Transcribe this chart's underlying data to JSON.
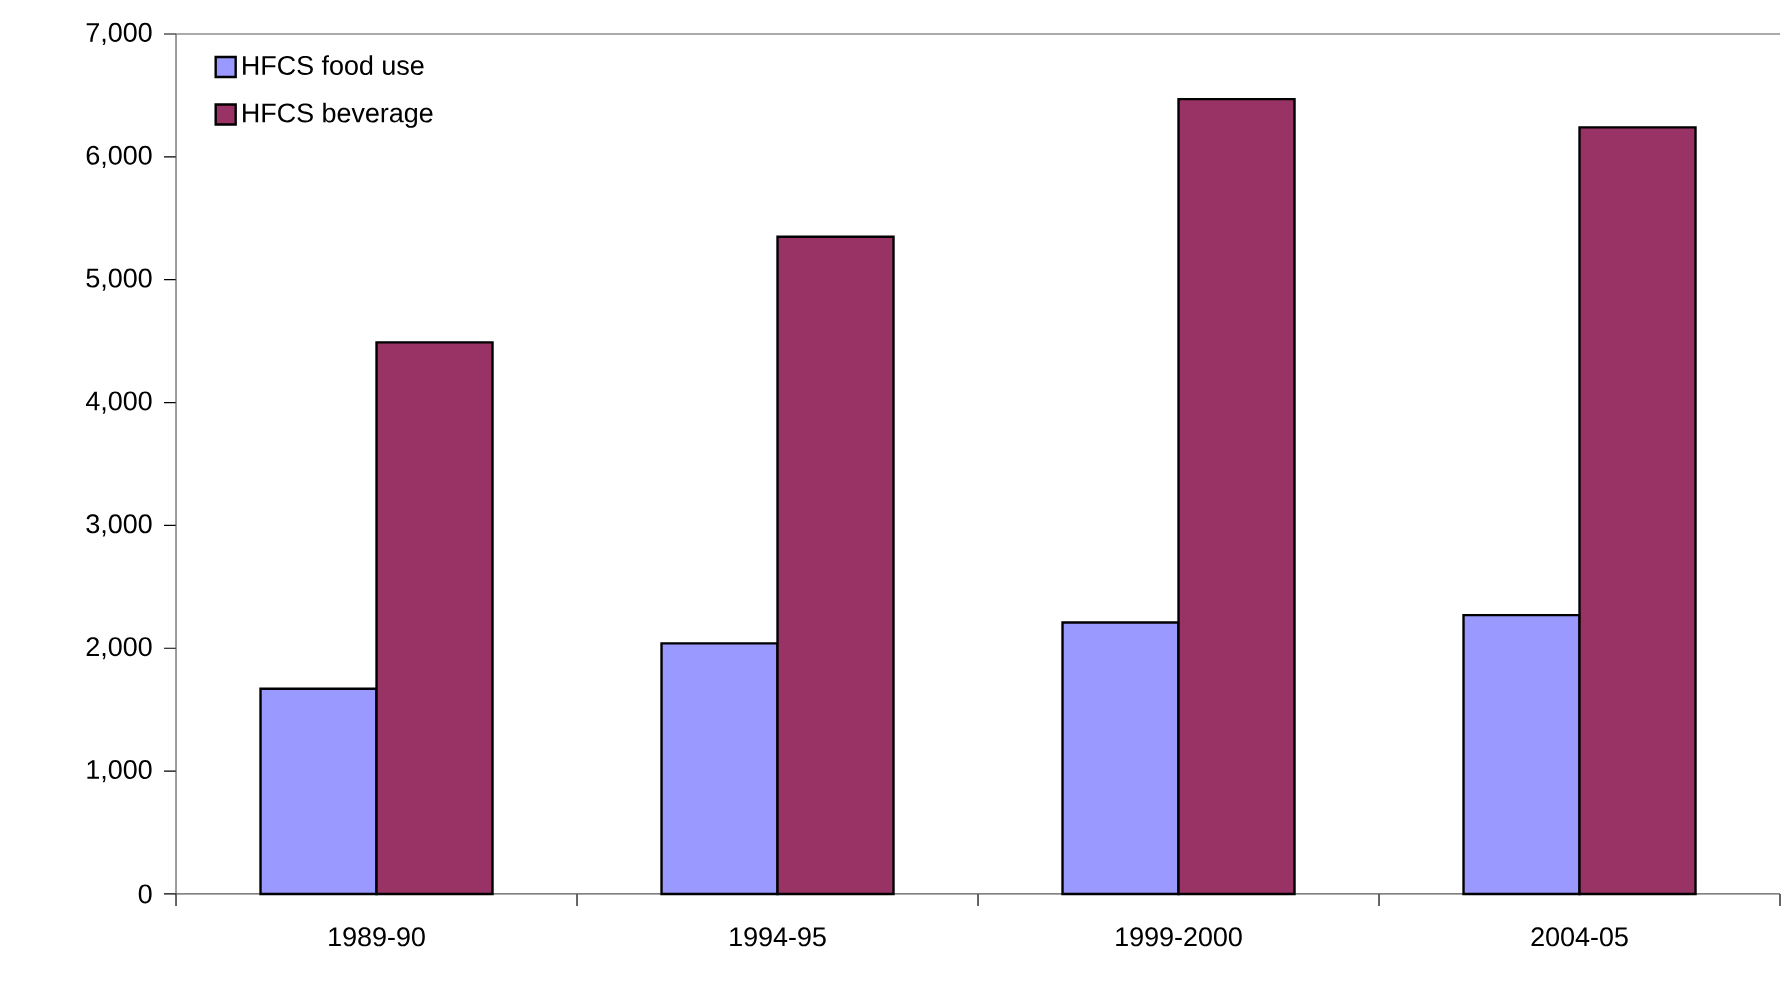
{
  "chart_data": {
    "type": "bar",
    "categories": [
      "1989-90",
      "1994-95",
      "1999-2000",
      "2004-05"
    ],
    "series": [
      {
        "name": "HFCS food use",
        "color": "#9999ff",
        "values": [
          1670,
          2040,
          2210,
          2270
        ]
      },
      {
        "name": "HFCS beverage",
        "color": "#993366",
        "values": [
          4490,
          5350,
          6470,
          6240
        ]
      }
    ],
    "ylim": [
      0,
      7000
    ],
    "yticks": [
      {
        "value": 0,
        "label": "0"
      },
      {
        "value": 1000,
        "label": "1,000"
      },
      {
        "value": 2000,
        "label": "2,000"
      },
      {
        "value": 3000,
        "label": "3,000"
      },
      {
        "value": 4000,
        "label": "4,000"
      },
      {
        "value": 5000,
        "label": "5,000"
      },
      {
        "value": 6000,
        "label": "6,000"
      },
      {
        "value": 7000,
        "label": "7,000"
      }
    ],
    "grid": false,
    "legend": "top left"
  }
}
